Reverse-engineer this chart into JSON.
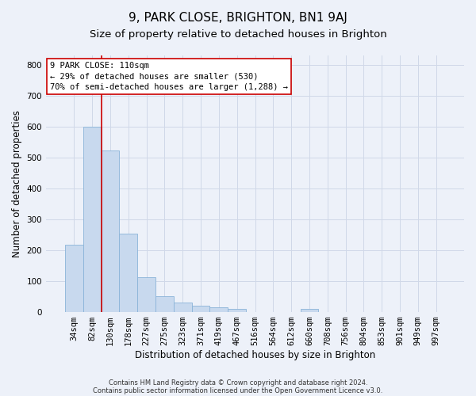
{
  "title": "9, PARK CLOSE, BRIGHTON, BN1 9AJ",
  "subtitle": "Size of property relative to detached houses in Brighton",
  "xlabel": "Distribution of detached houses by size in Brighton",
  "ylabel": "Number of detached properties",
  "footnote1": "Contains HM Land Registry data © Crown copyright and database right 2024.",
  "footnote2": "Contains public sector information licensed under the Open Government Licence v3.0.",
  "bin_labels": [
    "34sqm",
    "82sqm",
    "130sqm",
    "178sqm",
    "227sqm",
    "275sqm",
    "323sqm",
    "371sqm",
    "419sqm",
    "467sqm",
    "516sqm",
    "564sqm",
    "612sqm",
    "660sqm",
    "708sqm",
    "756sqm",
    "804sqm",
    "853sqm",
    "901sqm",
    "949sqm",
    "997sqm"
  ],
  "bar_values": [
    218,
    600,
    522,
    255,
    113,
    52,
    31,
    20,
    16,
    11,
    0,
    0,
    0,
    10,
    0,
    0,
    0,
    0,
    0,
    0,
    0
  ],
  "bar_color": "#c8d9ee",
  "bar_edge_color": "#8ab4d8",
  "grid_color": "#d0d8e8",
  "property_line_x": 1.5,
  "property_line_color": "#cc0000",
  "ylim": [
    0,
    830
  ],
  "yticks": [
    0,
    100,
    200,
    300,
    400,
    500,
    600,
    700,
    800
  ],
  "annotation_text": "9 PARK CLOSE: 110sqm\n← 29% of detached houses are smaller (530)\n70% of semi-detached houses are larger (1,288) →",
  "annotation_box_color": "#ffffff",
  "annotation_box_edge": "#cc0000",
  "title_fontsize": 11,
  "subtitle_fontsize": 9.5,
  "label_fontsize": 8.5,
  "tick_fontsize": 7.5,
  "annot_fontsize": 7.5,
  "background_color": "#edf1f9"
}
